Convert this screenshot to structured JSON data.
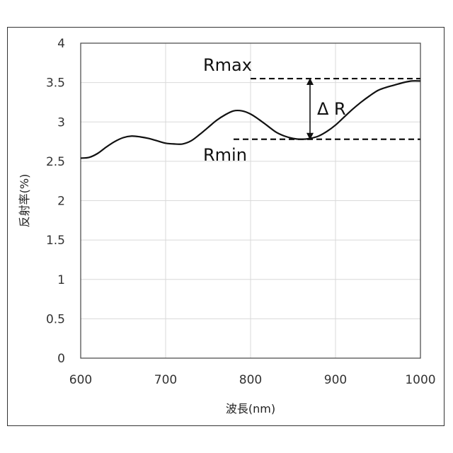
{
  "chart_data": {
    "type": "line",
    "xlabel": "波長(nm)",
    "ylabel": "反射率(%)",
    "xlim": [
      600,
      1000
    ],
    "ylim": [
      0,
      4
    ],
    "xticks": [
      600,
      700,
      800,
      900,
      1000
    ],
    "yticks": [
      0,
      0.5,
      1,
      1.5,
      2,
      2.5,
      3,
      3.5,
      4
    ],
    "grid": true,
    "series": [
      {
        "x": [
          600,
          610,
          620,
          630,
          640,
          650,
          660,
          670,
          680,
          690,
          700,
          710,
          720,
          730,
          740,
          750,
          760,
          770,
          780,
          790,
          800,
          810,
          820,
          830,
          840,
          850,
          860,
          870,
          880,
          890,
          900,
          910,
          920,
          930,
          940,
          950,
          960,
          970,
          980,
          990,
          1000
        ],
        "y": [
          2.54,
          2.55,
          2.6,
          2.68,
          2.75,
          2.8,
          2.82,
          2.81,
          2.79,
          2.76,
          2.73,
          2.72,
          2.72,
          2.76,
          2.84,
          2.93,
          3.02,
          3.09,
          3.14,
          3.14,
          3.1,
          3.03,
          2.95,
          2.87,
          2.82,
          2.79,
          2.78,
          2.79,
          2.82,
          2.88,
          2.96,
          3.06,
          3.16,
          3.25,
          3.33,
          3.4,
          3.44,
          3.47,
          3.5,
          3.52,
          3.52
        ]
      }
    ],
    "annotations": {
      "rmax": {
        "label": "Rmax",
        "value": 3.55,
        "line_x": [
          800,
          1000
        ]
      },
      "rmin": {
        "label": "Rmin",
        "value": 2.78,
        "line_x": [
          780,
          1000
        ]
      },
      "delta": {
        "label": "Δ R",
        "x": 870
      }
    }
  }
}
